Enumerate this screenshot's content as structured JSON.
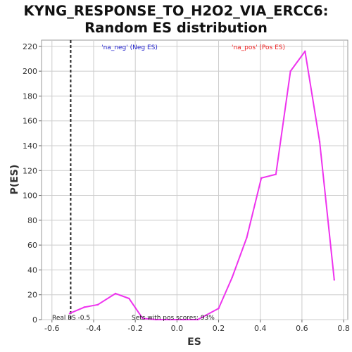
{
  "chart_data": {
    "type": "line",
    "title_lines": [
      "KYNG_RESPONSE_TO_H2O2_VIA_ERCC6:",
      "Random ES distribution"
    ],
    "xlabel": "ES",
    "ylabel": "P(ES)",
    "xlim": [
      -0.65,
      0.82
    ],
    "ylim": [
      0,
      225
    ],
    "xticks": [
      -0.6,
      -0.4,
      -0.2,
      0.0,
      0.2,
      0.4,
      0.6,
      0.8
    ],
    "xtick_labels": [
      "-0.6",
      "-0.4",
      "-0.2",
      "0.0",
      "0.2",
      "0.4",
      "0.6",
      "0.8"
    ],
    "yticks": [
      0,
      20,
      40,
      60,
      80,
      100,
      120,
      140,
      160,
      180,
      200,
      220
    ],
    "ytick_labels": [
      "0",
      "20",
      "40",
      "60",
      "80",
      "100",
      "120",
      "140",
      "160",
      "180",
      "200",
      "220"
    ],
    "grid": true,
    "series": [
      {
        "color": "#ee33ee",
        "x": [
          -0.515,
          -0.445,
          -0.38,
          -0.295,
          -0.23,
          -0.165,
          -0.1,
          -0.035,
          0.03,
          0.1,
          0.2,
          0.265,
          0.335,
          0.405,
          0.475,
          0.545,
          0.615,
          0.685,
          0.755
        ],
        "y": [
          5,
          10,
          12,
          21,
          17,
          1,
          0,
          0,
          0,
          0,
          9,
          34,
          66,
          114,
          117,
          200,
          216,
          143,
          32
        ]
      }
    ],
    "reference_line": {
      "x": -0.51,
      "style": "dashed",
      "color": "#222222"
    },
    "annotations": {
      "neg_label": "'na_neg' (Neg ES)",
      "pos_label": "'na_pos' (Pos ES)",
      "real_es": "Real ES -0.5",
      "sets_pos": "Sets with pos scores: 93%"
    },
    "colors": {
      "neg": "#2222cc",
      "pos": "#ee2222",
      "grid": "#cccccc",
      "plot_bg": "#ffffff"
    }
  }
}
